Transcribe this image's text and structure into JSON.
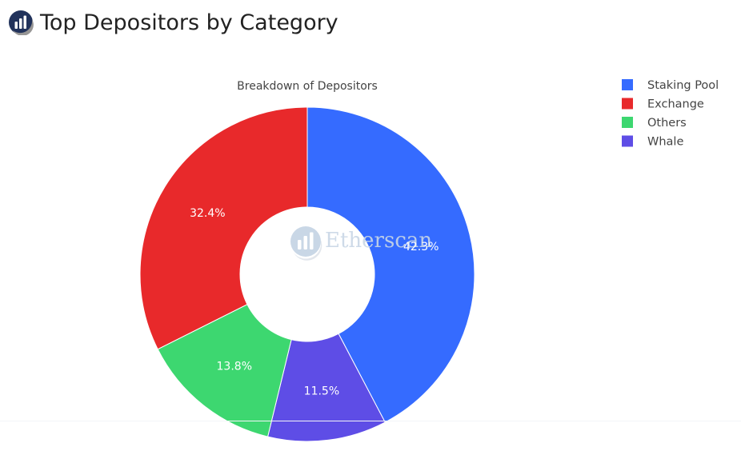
{
  "header": {
    "title": "Top Depositors by Category",
    "logo_icon": "etherscan-logo-icon"
  },
  "watermark": {
    "text": "Etherscan",
    "icon": "etherscan-logo-icon"
  },
  "chart_data": {
    "type": "pie",
    "hole": true,
    "title": "Breakdown of Depositors",
    "slices": [
      {
        "name": "Staking Pool",
        "value": 42.3,
        "label": "42.3%",
        "color": "#356BFF"
      },
      {
        "name": "Whale",
        "value": 11.5,
        "label": "11.5%",
        "color": "#5E4DE6"
      },
      {
        "name": "Others",
        "value": 13.8,
        "label": "13.8%",
        "color": "#3DD770"
      },
      {
        "name": "Exchange",
        "value": 32.4,
        "label": "32.4%",
        "color": "#E8292B"
      }
    ],
    "legend": {
      "placement": "top-right",
      "entries": [
        "Staking Pool",
        "Exchange",
        "Others",
        "Whale"
      ]
    }
  }
}
